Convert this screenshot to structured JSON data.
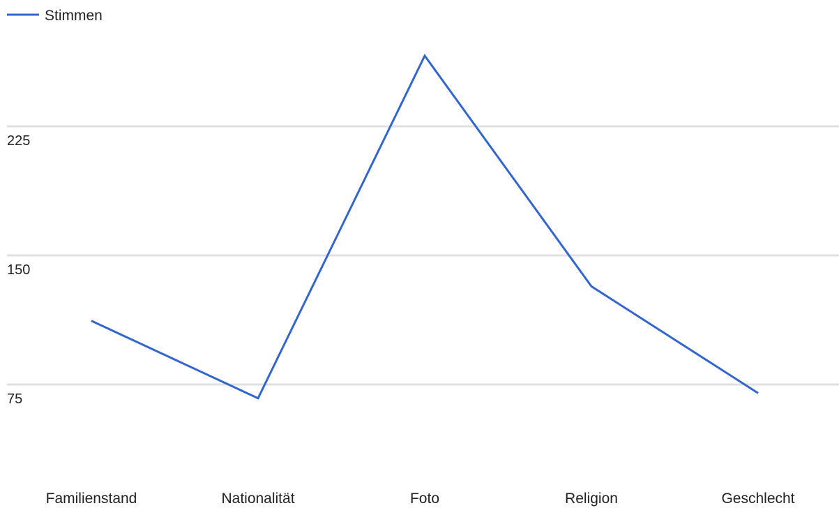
{
  "chart_data": {
    "type": "line",
    "categories": [
      "Familienstand",
      "Nationalität",
      "Foto",
      "Religion",
      "Geschlecht"
    ],
    "series": [
      {
        "name": "Stimmen",
        "values": [
          112,
          67,
          266,
          132,
          70
        ]
      }
    ],
    "y_ticks": [
      75,
      150,
      225
    ],
    "y_tick_labels": [
      "75",
      "150",
      "225"
    ],
    "ylim": [
      30,
      300
    ],
    "grid": true,
    "legend": "top-left",
    "title": "",
    "xlabel": "",
    "ylabel": ""
  },
  "colors": {
    "series": "#3366cc",
    "grid": "#e0e0e0",
    "text": "#222222"
  }
}
